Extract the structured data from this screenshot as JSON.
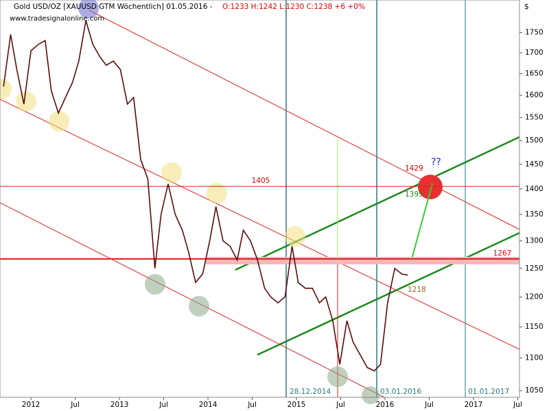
{
  "chart_data": {
    "type": "line",
    "title": "Gold USD/OZ [XAUUSD GTM  Wöchentlich] 01.05.2016 -",
    "quote": "O:1233 H:1242 L:1230 C:1238 +6 +0%",
    "color": "#5a0a0a",
    "x": [
      2011.69,
      2011.77,
      2011.84,
      2011.92,
      2012.0,
      2012.08,
      2012.16,
      2012.23,
      2012.31,
      2012.39,
      2012.47,
      2012.54,
      2012.62,
      2012.7,
      2012.78,
      2012.85,
      2012.93,
      2013.01,
      2013.09,
      2013.16,
      2013.24,
      2013.32,
      2013.4,
      2013.47,
      2013.55,
      2013.63,
      2013.71,
      2013.78,
      2013.86,
      2013.94,
      2014.02,
      2014.09,
      2014.17,
      2014.25,
      2014.33,
      2014.4,
      2014.48,
      2014.56,
      2014.64,
      2014.71,
      2014.79,
      2014.87,
      2014.95,
      2015.02,
      2015.1,
      2015.18,
      2015.26,
      2015.33,
      2015.41,
      2015.49,
      2015.57,
      2015.64,
      2015.72,
      2015.8,
      2015.88,
      2015.95,
      2016.03,
      2016.11,
      2016.19,
      2016.26
    ],
    "values": [
      1620,
      1745,
      1660,
      1580,
      1705,
      1720,
      1730,
      1610,
      1560,
      1595,
      1630,
      1680,
      1780,
      1720,
      1690,
      1670,
      1680,
      1660,
      1580,
      1595,
      1460,
      1420,
      1250,
      1350,
      1410,
      1350,
      1320,
      1280,
      1225,
      1240,
      1300,
      1365,
      1300,
      1290,
      1265,
      1320,
      1300,
      1265,
      1215,
      1200,
      1190,
      1200,
      1290,
      1225,
      1215,
      1215,
      1190,
      1200,
      1160,
      1090,
      1160,
      1125,
      1105,
      1085,
      1080,
      1090,
      1190,
      1250,
      1240,
      1238
    ],
    "xlim": [
      2011.65,
      2017.52
    ],
    "xticks": [
      2012,
      {
        "value": 2012.5,
        "label": "Jul"
      },
      2013,
      {
        "value": 2013.5,
        "label": "Jul"
      },
      2014,
      {
        "value": 2014.5,
        "label": "Jul"
      },
      2015,
      {
        "value": 2015.5,
        "label": "Jul"
      },
      2016,
      {
        "value": 2016.5,
        "label": "Jul"
      },
      2017,
      {
        "value": 2017.5,
        "label": "Jul"
      }
    ],
    "ylim": [
      1040,
      1833
    ],
    "yticks": [
      1050,
      1100,
      1150,
      1200,
      1250,
      1300,
      1350,
      1400,
      1450,
      1500,
      1550,
      1600,
      1650,
      1700,
      1750
    ],
    "log_scale": true,
    "levels": [
      {
        "value": 1405,
        "label": "1405"
      },
      {
        "value": 1267,
        "label": "1267"
      }
    ],
    "annotations": [
      "1429",
      "1395",
      "1218",
      "??",
      "28.12.2014",
      "03.01.2016",
      "01.01.2017",
      "www.tradesignalonline.com",
      "$"
    ]
  }
}
